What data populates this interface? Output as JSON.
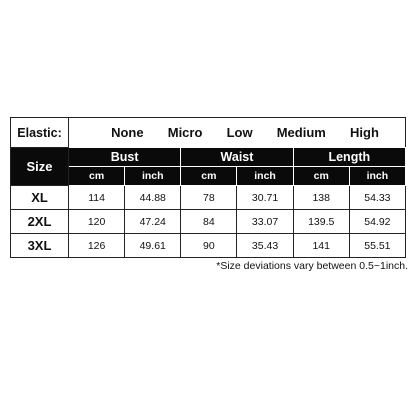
{
  "elastic": {
    "label": "Elastic:",
    "options": [
      "None",
      "Micro",
      "Low",
      "Medium",
      "High"
    ]
  },
  "table": {
    "size_header": "Size",
    "groups": [
      "Bust",
      "Waist",
      "Length"
    ],
    "units": [
      "cm",
      "inch",
      "cm",
      "inch",
      "cm",
      "inch"
    ],
    "rows": [
      {
        "size": "XL",
        "values": [
          "114",
          "44.88",
          "78",
          "30.71",
          "138",
          "54.33"
        ]
      },
      {
        "size": "2XL",
        "values": [
          "120",
          "47.24",
          "84",
          "33.07",
          "139.5",
          "54.92"
        ]
      },
      {
        "size": "3XL",
        "values": [
          "126",
          "49.61",
          "90",
          "35.43",
          "141",
          "55.51"
        ]
      }
    ]
  },
  "note": "*Size deviations vary between 0.5~1inch."
}
